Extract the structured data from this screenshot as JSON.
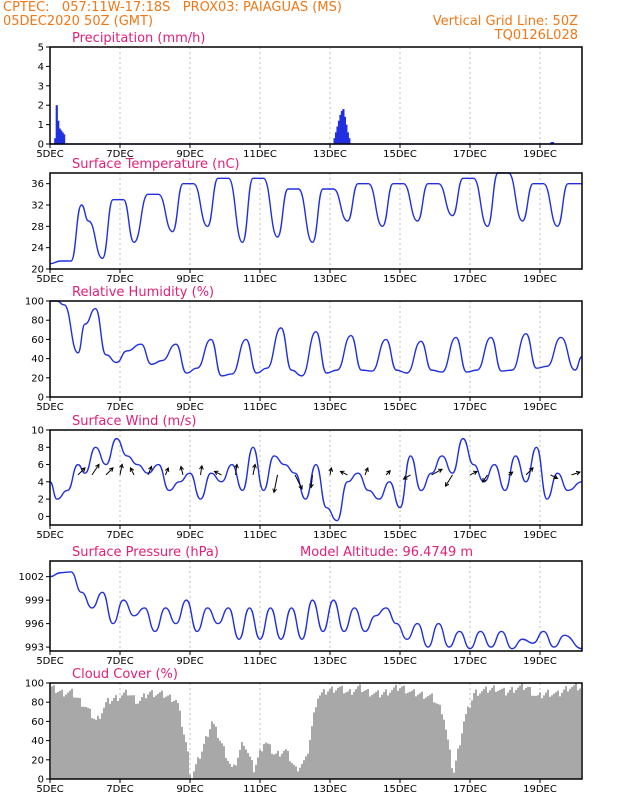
{
  "header": {
    "line1_left": "CPTEC:   057:11W-17:18S   PROX03: PAIAGUAS (MS)",
    "line2_left": "05DEC2020 50Z (GMT)",
    "line2_right": "Vertical Grid Line: 50Z",
    "line3_right": "TQ0126L028"
  },
  "colors": {
    "header": "#f07818",
    "title": "#e0207a",
    "line": "#2030e0",
    "bar": "#2030e0",
    "cloud": "#a8a8a8"
  },
  "x_axis": {
    "ticks": [
      "5DEC",
      "7DEC",
      "9DEC",
      "11DEC",
      "13DEC",
      "15DEC",
      "17DEC",
      "19DEC"
    ],
    "range_days": [
      5,
      20.2
    ]
  },
  "chart_data": [
    {
      "id": "precip",
      "type": "bar",
      "title": "Precipitation (mm/h)",
      "ylim": [
        0,
        5
      ],
      "yticks": [
        "0",
        "1",
        "2",
        "3",
        "4",
        "5"
      ],
      "events": [
        {
          "x": 5.12,
          "values": [
            0.3,
            2.0,
            1.2,
            0.8,
            0.7,
            0.6,
            0.5
          ]
        },
        {
          "x": 13.1,
          "values": [
            0.3,
            0.6,
            0.9,
            1.2,
            1.5,
            1.7,
            1.8,
            1.4,
            1.0,
            0.6,
            0.3
          ]
        },
        {
          "x": 19.3,
          "values": [
            0.1,
            0.1
          ]
        }
      ]
    },
    {
      "id": "temp",
      "type": "line",
      "title": "Surface Temperature (nC)",
      "ylim": [
        20,
        38
      ],
      "yticks": [
        "20",
        "24",
        "28",
        "32",
        "36"
      ],
      "x": [
        5.0,
        5.3,
        5.6,
        5.9,
        6.1,
        6.5,
        6.8,
        7.1,
        7.4,
        7.8,
        8.1,
        8.5,
        8.8,
        9.1,
        9.5,
        9.8,
        10.1,
        10.5,
        10.8,
        11.1,
        11.5,
        11.8,
        12.1,
        12.5,
        12.8,
        13.1,
        13.5,
        13.8,
        14.1,
        14.5,
        14.8,
        15.1,
        15.5,
        15.8,
        16.1,
        16.5,
        16.8,
        17.1,
        17.5,
        17.8,
        18.1,
        18.5,
        18.8,
        19.1,
        19.5,
        19.8,
        20.2
      ],
      "y": [
        21,
        21.5,
        21.5,
        32,
        29,
        22,
        33,
        33,
        25,
        34,
        34,
        27,
        36,
        36,
        28,
        37,
        37,
        25,
        37,
        37,
        26,
        35,
        35,
        25,
        35,
        35,
        29,
        36,
        36,
        28,
        36,
        36,
        29,
        36,
        36,
        30,
        37,
        37,
        28,
        38,
        38,
        29,
        36,
        36,
        28,
        36,
        36
      ]
    },
    {
      "id": "rh",
      "type": "line",
      "title": "Relative Humidity (%)",
      "ylim": [
        0,
        100
      ],
      "yticks": [
        "0",
        "20",
        "40",
        "60",
        "80",
        "100"
      ],
      "x": [
        5.0,
        5.2,
        5.4,
        5.8,
        6.0,
        6.3,
        6.6,
        6.9,
        7.2,
        7.6,
        7.9,
        8.2,
        8.6,
        8.9,
        9.2,
        9.6,
        9.9,
        10.2,
        10.6,
        10.9,
        11.2,
        11.6,
        11.9,
        12.2,
        12.6,
        12.9,
        13.2,
        13.6,
        13.9,
        14.2,
        14.6,
        14.9,
        15.2,
        15.6,
        15.9,
        16.2,
        16.6,
        16.9,
        17.2,
        17.6,
        17.9,
        18.2,
        18.6,
        18.9,
        19.2,
        19.6,
        20.0,
        20.2
      ],
      "y": [
        100,
        100,
        96,
        46,
        76,
        92,
        44,
        36,
        48,
        55,
        34,
        38,
        55,
        25,
        30,
        60,
        22,
        24,
        60,
        25,
        30,
        72,
        28,
        22,
        68,
        25,
        28,
        64,
        28,
        27,
        60,
        28,
        25,
        58,
        28,
        26,
        62,
        26,
        28,
        62,
        27,
        28,
        66,
        30,
        32,
        62,
        28,
        42
      ]
    },
    {
      "id": "wind",
      "type": "line",
      "title": "Surface Wind (m/s)",
      "ylim": [
        -1,
        10
      ],
      "yticks": [
        "0",
        "2",
        "4",
        "6",
        "8",
        "10"
      ],
      "x": [
        5.0,
        5.2,
        5.5,
        5.8,
        6.0,
        6.3,
        6.6,
        6.9,
        7.2,
        7.5,
        7.8,
        8.1,
        8.4,
        8.7,
        9.0,
        9.3,
        9.6,
        9.9,
        10.2,
        10.5,
        10.8,
        11.1,
        11.4,
        11.7,
        12.0,
        12.3,
        12.6,
        12.9,
        13.2,
        13.5,
        13.8,
        14.1,
        14.4,
        14.7,
        15.0,
        15.3,
        15.6,
        15.9,
        16.2,
        16.5,
        16.8,
        17.1,
        17.4,
        17.7,
        18.0,
        18.3,
        18.6,
        18.9,
        19.2,
        19.5,
        19.8,
        20.2
      ],
      "y": [
        4,
        2,
        3,
        6,
        5,
        8,
        6,
        9,
        7,
        6,
        5,
        6,
        3,
        4,
        5,
        2,
        5,
        4,
        6,
        3,
        8,
        3,
        7,
        6,
        5,
        2,
        6,
        1,
        -0.5,
        4,
        5,
        3,
        2,
        4,
        1,
        7,
        3,
        5,
        7,
        5,
        9,
        6,
        4,
        6,
        3,
        7,
        4,
        8,
        2,
        5,
        3,
        4
      ],
      "arrows": [
        {
          "x": 5.8,
          "u": 1,
          "v": 1
        },
        {
          "x": 6.2,
          "u": 1,
          "v": 1.5
        },
        {
          "x": 6.6,
          "u": 1,
          "v": 1
        },
        {
          "x": 7.0,
          "u": 0.3,
          "v": 1.5
        },
        {
          "x": 7.4,
          "u": -0.5,
          "v": 1
        },
        {
          "x": 7.8,
          "u": 0.5,
          "v": 1.2
        },
        {
          "x": 8.3,
          "u": 0.4,
          "v": 1
        },
        {
          "x": 8.8,
          "u": -0.3,
          "v": 1.2
        },
        {
          "x": 9.3,
          "u": 0.2,
          "v": 1.3
        },
        {
          "x": 9.9,
          "u": -1,
          "v": 0.5
        },
        {
          "x": 10.3,
          "u": 0.2,
          "v": 1.5
        },
        {
          "x": 10.8,
          "u": 0.3,
          "v": 1.5
        },
        {
          "x": 11.5,
          "u": -0.5,
          "v": -2.5
        },
        {
          "x": 12.0,
          "u": 1,
          "v": -2
        },
        {
          "x": 12.5,
          "u": -0.2,
          "v": -1.8
        },
        {
          "x": 13.0,
          "u": 0.2,
          "v": 1
        },
        {
          "x": 13.5,
          "u": -1,
          "v": 0.5
        },
        {
          "x": 14.0,
          "u": 0.4,
          "v": 1
        },
        {
          "x": 14.6,
          "u": 0.6,
          "v": 0.6
        },
        {
          "x": 15.3,
          "u": -1,
          "v": -0.6
        },
        {
          "x": 15.9,
          "u": 1.5,
          "v": 0.8
        },
        {
          "x": 16.5,
          "u": -1,
          "v": -1.6
        },
        {
          "x": 17.0,
          "u": 1,
          "v": 0.5
        },
        {
          "x": 17.5,
          "u": -0.7,
          "v": -1
        },
        {
          "x": 18.1,
          "u": 0.6,
          "v": 0.4
        },
        {
          "x": 18.6,
          "u": 1,
          "v": 1
        },
        {
          "x": 19.3,
          "u": 1,
          "v": -0.5
        },
        {
          "x": 19.9,
          "u": 1.2,
          "v": 0.4
        }
      ]
    },
    {
      "id": "pres",
      "type": "line",
      "title": "Surface Pressure (hPa)",
      "annotation": "Model Altitude: 96.4749 m",
      "ylim": [
        992.5,
        1004
      ],
      "yticks": [
        "993",
        "996",
        "999",
        "1002"
      ],
      "x": [
        5.0,
        5.3,
        5.6,
        5.9,
        6.2,
        6.5,
        6.8,
        7.1,
        7.4,
        7.7,
        8.0,
        8.3,
        8.6,
        8.9,
        9.2,
        9.5,
        9.8,
        10.1,
        10.4,
        10.7,
        11.0,
        11.3,
        11.6,
        11.9,
        12.2,
        12.5,
        12.8,
        13.1,
        13.4,
        13.7,
        14.0,
        14.3,
        14.6,
        14.9,
        15.2,
        15.5,
        15.8,
        16.1,
        16.4,
        16.7,
        17.0,
        17.3,
        17.6,
        17.9,
        18.2,
        18.5,
        18.8,
        19.1,
        19.4,
        19.7,
        20.2
      ],
      "y": [
        1002,
        1002.5,
        1002.6,
        1000,
        998,
        1000,
        996,
        999,
        997,
        998,
        995,
        998,
        996,
        999,
        995,
        998,
        996,
        998,
        994,
        998,
        994,
        998,
        994,
        998,
        994,
        999,
        995,
        999,
        995,
        998,
        995,
        997,
        998,
        996,
        994,
        996,
        993,
        996,
        993,
        995,
        992.8,
        995,
        993,
        995,
        992.8,
        994,
        993.5,
        995,
        993,
        994.5,
        992.8
      ]
    },
    {
      "id": "cloud",
      "type": "area",
      "title": "Cloud Cover (%)",
      "ylim": [
        0,
        100
      ],
      "yticks": [
        "0",
        "20",
        "40",
        "60",
        "80",
        "100"
      ],
      "x": [
        5.0,
        5.3,
        5.6,
        6.0,
        6.3,
        6.6,
        6.9,
        7.2,
        7.5,
        7.8,
        8.2,
        8.6,
        8.9,
        9.0,
        9.3,
        9.6,
        9.9,
        10.2,
        10.5,
        10.8,
        11.1,
        11.4,
        11.7,
        12.0,
        12.3,
        12.6,
        12.9,
        13.2,
        13.5,
        13.8,
        14.1,
        14.4,
        14.7,
        15.0,
        15.3,
        15.6,
        15.9,
        16.2,
        16.5,
        16.8,
        17.1,
        17.4,
        17.7,
        18.0,
        18.3,
        18.6,
        18.9,
        19.2,
        19.5,
        19.8,
        20.2
      ],
      "y": [
        95,
        90,
        90,
        75,
        60,
        80,
        85,
        90,
        80,
        90,
        88,
        82,
        30,
        0,
        28,
        60,
        35,
        8,
        40,
        10,
        40,
        25,
        30,
        10,
        20,
        85,
        92,
        95,
        90,
        95,
        90,
        88,
        92,
        96,
        90,
        88,
        85,
        70,
        5,
        60,
        90,
        92,
        95,
        90,
        95,
        96,
        85,
        90,
        88,
        96,
        95
      ]
    }
  ]
}
